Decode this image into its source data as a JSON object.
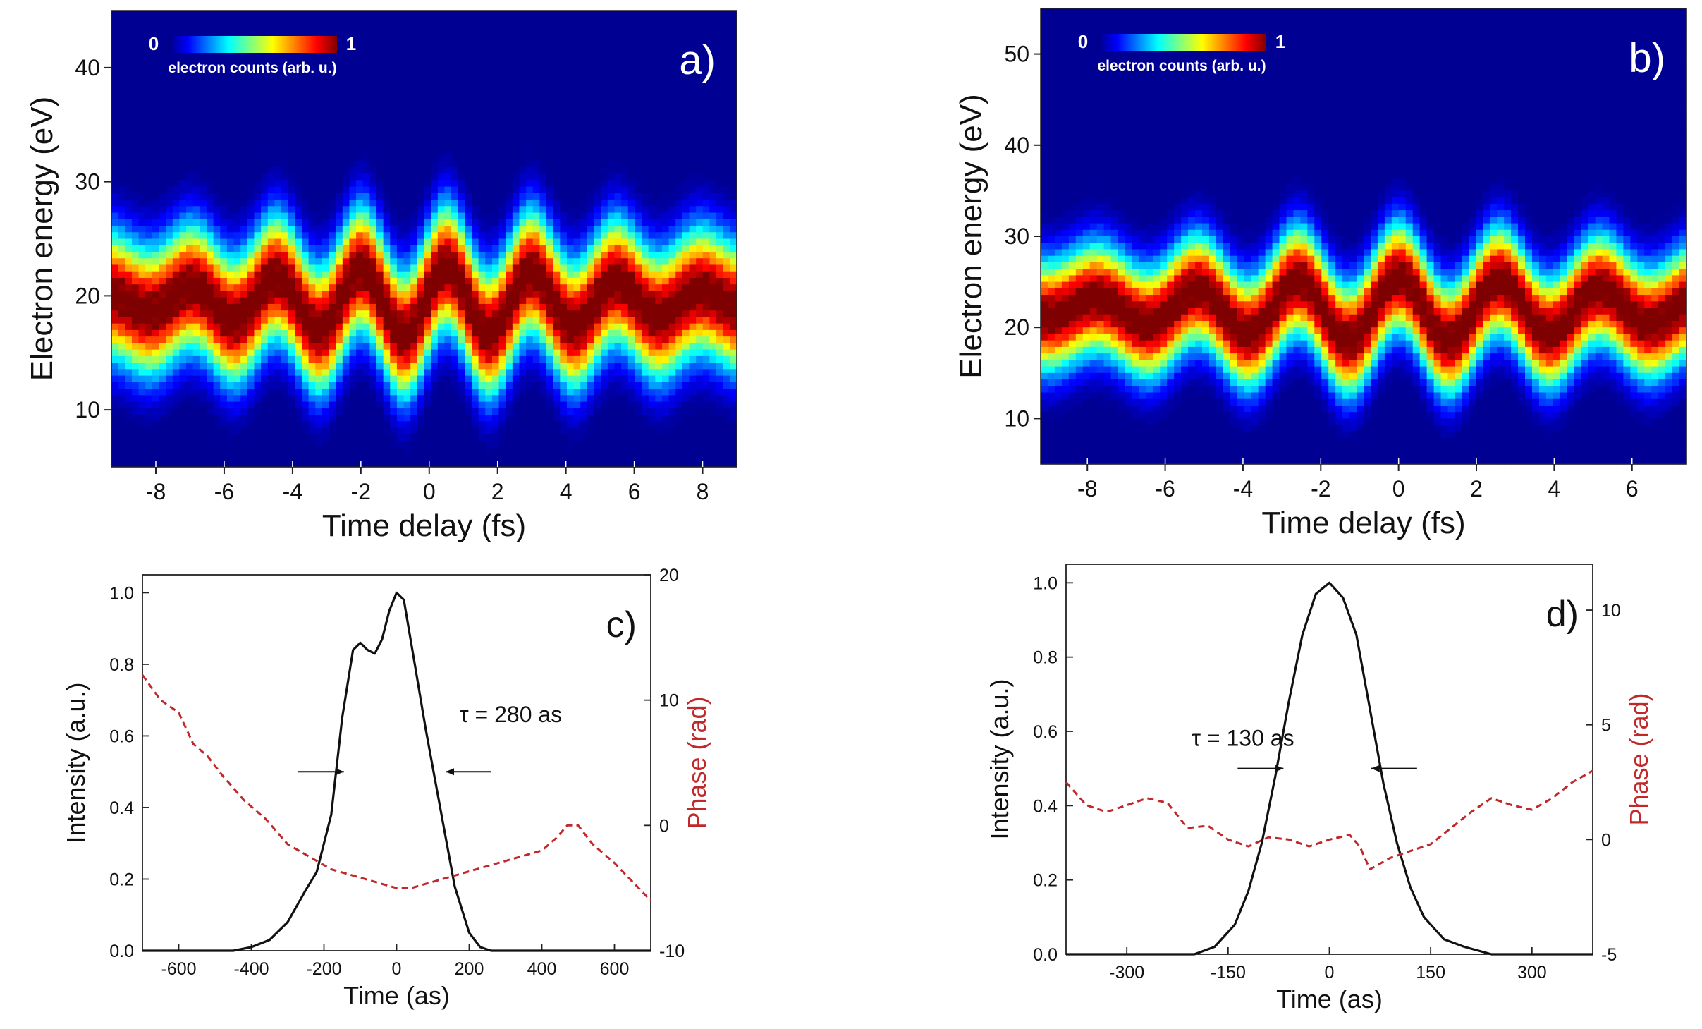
{
  "colors": {
    "axis": "#222222",
    "intensity_line": "#111111",
    "phase_line": "#c0282a",
    "phase_label": "#c0282a",
    "colormap": [
      "#00007f",
      "#0000ff",
      "#007fff",
      "#00ffff",
      "#7fff7f",
      "#ffff00",
      "#ff7f00",
      "#ff0000",
      "#7f0000"
    ]
  },
  "chart_data": [
    {
      "panel": "a)",
      "type": "heatmap",
      "title": "",
      "xlabel": "Time delay (fs)",
      "ylabel": "Electron energy (eV)",
      "xlim": [
        -9.3,
        9.0
      ],
      "ylim": [
        5,
        45
      ],
      "xticks": [
        -8,
        -6,
        -4,
        -2,
        0,
        2,
        4,
        6,
        8
      ],
      "yticks": [
        10,
        20,
        30,
        40
      ],
      "colorbar": {
        "min_label": "0",
        "max_label": "1",
        "label": "electron counts (arb. u.)"
      },
      "streak": {
        "center_eV": 19.5,
        "period_fs": 2.5,
        "amplitude_eV": 3.0,
        "width_eV": 5.5,
        "phase_rad": 0.3
      }
    },
    {
      "panel": "b)",
      "type": "heatmap",
      "title": "",
      "xlabel": "Time delay (fs)",
      "ylabel": "Electron energy (eV)",
      "xlim": [
        -9.2,
        7.4
      ],
      "ylim": [
        5,
        55
      ],
      "xticks": [
        -8,
        -6,
        -4,
        -2,
        0,
        2,
        4,
        6
      ],
      "yticks": [
        10,
        20,
        30,
        40,
        50
      ],
      "colorbar": {
        "min_label": "0",
        "max_label": "1",
        "label": "electron counts (arb. u.)"
      },
      "streak": {
        "center_eV": 22.0,
        "period_fs": 2.6,
        "amplitude_eV": 3.5,
        "width_eV": 6.0,
        "phase_rad": 1.57
      }
    },
    {
      "panel": "c)",
      "type": "line",
      "title": "",
      "xlabel": "Time (as)",
      "ylabel": "Intensity (a.u.)",
      "y2label": "Phase (rad)",
      "xlim": [
        -700,
        700
      ],
      "ylim": [
        0,
        1.05
      ],
      "y2lim": [
        -10,
        20
      ],
      "xticks": [
        -600,
        -400,
        -200,
        0,
        200,
        400,
        600
      ],
      "yticks": [
        0.0,
        0.2,
        0.4,
        0.6,
        0.8,
        1.0
      ],
      "y2ticks": [
        -10,
        0,
        10,
        20
      ],
      "annotation": "τ = 280 as",
      "fwhm_arrows": {
        "left_as": -145,
        "right_as": 135,
        "level": 0.5
      },
      "series": [
        {
          "name": "Intensity",
          "axis": "left",
          "style": "solid",
          "x": [
            -700,
            -450,
            -400,
            -350,
            -300,
            -250,
            -220,
            -180,
            -150,
            -120,
            -100,
            -80,
            -60,
            -40,
            -20,
            0,
            20,
            50,
            80,
            120,
            160,
            200,
            230,
            260,
            300,
            700
          ],
          "y": [
            0.0,
            0.0,
            0.01,
            0.03,
            0.08,
            0.17,
            0.22,
            0.38,
            0.65,
            0.84,
            0.86,
            0.84,
            0.83,
            0.87,
            0.95,
            1.0,
            0.98,
            0.8,
            0.62,
            0.4,
            0.18,
            0.05,
            0.01,
            0.0,
            0.0,
            0.0
          ]
        },
        {
          "name": "Phase",
          "axis": "right",
          "style": "dashed",
          "x": [
            -700,
            -650,
            -600,
            -560,
            -520,
            -480,
            -420,
            -360,
            -300,
            -240,
            -180,
            -120,
            -60,
            0,
            40,
            100,
            160,
            220,
            280,
            340,
            400,
            440,
            470,
            500,
            540,
            600,
            650,
            700
          ],
          "y": [
            12,
            10,
            9,
            6.5,
            5.5,
            4,
            2,
            0.5,
            -1.5,
            -2.5,
            -3.5,
            -4,
            -4.5,
            -5,
            -5,
            -4.5,
            -4,
            -3.5,
            -3,
            -2.5,
            -2,
            -1,
            0,
            0,
            -1.5,
            -3,
            -4.5,
            -6
          ]
        }
      ]
    },
    {
      "panel": "d)",
      "type": "line",
      "title": "",
      "xlabel": "Time (as)",
      "ylabel": "Intensity (a.u.)",
      "y2label": "Phase (rad)",
      "xlim": [
        -390,
        390
      ],
      "ylim": [
        0,
        1.05
      ],
      "y2lim": [
        -5,
        12
      ],
      "xticks": [
        -300,
        -150,
        0,
        150,
        300
      ],
      "yticks": [
        0.0,
        0.2,
        0.4,
        0.6,
        0.8,
        1.0
      ],
      "y2ticks": [
        -5,
        0,
        5,
        10
      ],
      "annotation": "τ = 130 as",
      "fwhm_arrows": {
        "left_as": -68,
        "right_as": 62,
        "level": 0.5
      },
      "series": [
        {
          "name": "Intensity",
          "axis": "left",
          "style": "solid",
          "x": [
            -390,
            -200,
            -170,
            -140,
            -120,
            -100,
            -80,
            -60,
            -40,
            -20,
            0,
            20,
            40,
            60,
            80,
            100,
            120,
            140,
            170,
            200,
            240,
            300,
            390
          ],
          "y": [
            0.0,
            0.0,
            0.02,
            0.08,
            0.17,
            0.3,
            0.48,
            0.68,
            0.86,
            0.97,
            1.0,
            0.96,
            0.86,
            0.66,
            0.46,
            0.3,
            0.18,
            0.1,
            0.04,
            0.02,
            0.0,
            0.0,
            0.0
          ]
        },
        {
          "name": "Phase",
          "axis": "right",
          "style": "dashed",
          "x": [
            -390,
            -360,
            -330,
            -300,
            -270,
            -240,
            -210,
            -180,
            -150,
            -120,
            -90,
            -60,
            -30,
            0,
            30,
            45,
            60,
            90,
            120,
            150,
            180,
            210,
            240,
            270,
            300,
            330,
            360,
            390
          ],
          "y": [
            2.5,
            1.5,
            1.2,
            1.5,
            1.8,
            1.6,
            0.5,
            0.6,
            0,
            -0.3,
            0.1,
            0,
            -0.3,
            0,
            0.2,
            -0.3,
            -1.3,
            -0.8,
            -0.5,
            -0.2,
            0.5,
            1.2,
            1.8,
            1.5,
            1.3,
            1.8,
            2.5,
            3.0
          ]
        }
      ]
    }
  ]
}
